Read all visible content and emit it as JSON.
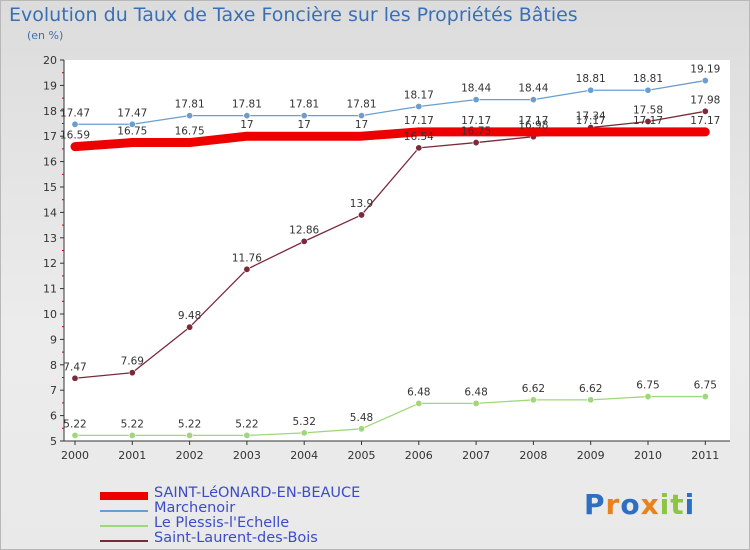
{
  "chart_data": {
    "type": "line",
    "title": "Evolution du Taux de Taxe Foncière sur les Propriétés Bâties",
    "ylabel": "(en %)",
    "xlabel": "",
    "categories": [
      "2000",
      "2001",
      "2002",
      "2003",
      "2004",
      "2005",
      "2006",
      "2007",
      "2008",
      "2009",
      "2010",
      "2011"
    ],
    "ylim": [
      5,
      20
    ],
    "yticks": [
      "5",
      "6",
      "7",
      "8",
      "9",
      "10",
      "11",
      "12",
      "13",
      "14",
      "15",
      "16",
      "17",
      "18",
      "19",
      "20"
    ],
    "grid": false,
    "legend_position": "bottom-left",
    "series": [
      {
        "name": "SAINT-LéONARD-EN-BEAUCE",
        "color": "#ee0000",
        "values": [
          16.59,
          16.75,
          16.75,
          17,
          17,
          17,
          17.17,
          17.17,
          17.17,
          17.17,
          17.17,
          17.17
        ],
        "labels": [
          "16.59",
          "16.75",
          "16.75",
          "17",
          "17",
          "17",
          "17.17",
          "17.17",
          "17.17",
          "17.17",
          "17.17",
          "17.17"
        ]
      },
      {
        "name": "Marchenoir",
        "color": "#6b9ed0",
        "values": [
          17.47,
          17.47,
          17.81,
          17.81,
          17.81,
          17.81,
          18.17,
          18.44,
          18.44,
          18.81,
          18.81,
          19.19
        ],
        "labels": [
          "17.47",
          "17.47",
          "17.81",
          "17.81",
          "17.81",
          "17.81",
          "18.17",
          "18.44",
          "18.44",
          "18.81",
          "18.81",
          "19.19"
        ]
      },
      {
        "name": "Le Plessis-l'Echelle",
        "color": "#9ed87a",
        "values": [
          5.22,
          5.22,
          5.22,
          5.22,
          5.32,
          5.48,
          6.48,
          6.48,
          6.62,
          6.62,
          6.75,
          6.75
        ],
        "labels": [
          "5.22",
          "5.22",
          "5.22",
          "5.22",
          "5.32",
          "5.48",
          "6.48",
          "6.48",
          "6.62",
          "6.62",
          "6.75",
          "6.75"
        ]
      },
      {
        "name": "Saint-Laurent-des-Bois",
        "color": "#7b2a3a",
        "values": [
          7.47,
          7.69,
          9.48,
          11.76,
          12.86,
          13.9,
          16.54,
          16.75,
          16.98,
          17.34,
          17.58,
          17.98
        ],
        "labels": [
          "7.47",
          "7.69",
          "9.48",
          "11.76",
          "12.86",
          "13.9",
          "16.54",
          "16.75",
          "16.98",
          "17.34",
          "17.58",
          "17.98"
        ]
      }
    ]
  },
  "logo": {
    "text": "Proxiti",
    "letters": [
      "P",
      "r",
      "o",
      "x",
      "i",
      "t",
      "i"
    ],
    "colors": [
      "#2f6fc0",
      "#e8821a",
      "#2f6fc0",
      "#e8821a",
      "#8cc63f",
      "#8cc63f",
      "#2f6fc0"
    ]
  }
}
